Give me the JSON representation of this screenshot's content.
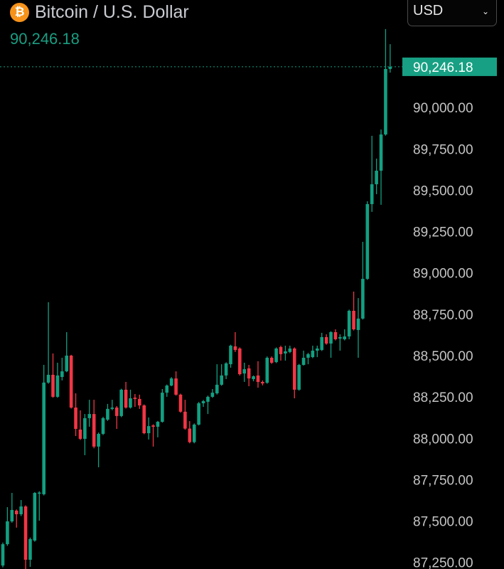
{
  "header": {
    "icon": "bitcoin-icon",
    "icon_glyph": "₿",
    "title": "Bitcoin / U.S. Dollar",
    "price": "90,246.18"
  },
  "currency_select": {
    "value": "USD",
    "icon": "chevron-down-icon"
  },
  "colors": {
    "up": "#12a082",
    "down": "#f23645",
    "last_price_bg": "#17a083",
    "background": "#000000"
  },
  "chart_data": {
    "type": "candlestick",
    "title": "Bitcoin / U.S. Dollar",
    "last_price": 90246.18,
    "last_price_label": "90,246.18",
    "ylim": [
      87210,
      90650
    ],
    "y_ticks": [
      90000,
      89750,
      89500,
      89250,
      89000,
      88750,
      88500,
      88250,
      88000,
      87750,
      87500,
      87250
    ],
    "y_tick_labels": [
      "90,000.00",
      "89,750.00",
      "89,500.00",
      "89,250.00",
      "89,000.00",
      "88,750.00",
      "88,500.00",
      "88,250.00",
      "88,000.00",
      "87,750.00",
      "87,500.00",
      "87,250.00"
    ],
    "grid": false,
    "candles": [
      [
        87231,
        87370,
        87220,
        87360
      ],
      [
        87360,
        87584,
        87350,
        87498
      ],
      [
        87498,
        87670,
        87490,
        87567
      ],
      [
        87563,
        87570,
        87460,
        87541
      ],
      [
        87541,
        87627,
        87530,
        87588
      ],
      [
        87588,
        87595,
        87210,
        87266
      ],
      [
        87266,
        87400,
        87223,
        87391
      ],
      [
        87382,
        87675,
        87375,
        87670
      ],
      [
        87670,
        87680,
        87502,
        87672
      ],
      [
        87662,
        88444,
        87655,
        88337
      ],
      [
        88337,
        88823,
        88330,
        88384
      ],
      [
        88384,
        88513,
        88245,
        88251
      ],
      [
        88251,
        88457,
        88245,
        88380
      ],
      [
        88371,
        88487,
        88350,
        88405
      ],
      [
        88405,
        88642,
        88400,
        88500
      ],
      [
        88500,
        88505,
        88180,
        88186
      ],
      [
        88186,
        88272,
        88014,
        88057
      ],
      [
        88053,
        88169,
        87990,
        87997
      ],
      [
        87997,
        88147,
        87898,
        88122
      ],
      [
        88122,
        88233,
        88070,
        88147
      ],
      [
        88147,
        88233,
        87940,
        87950
      ],
      [
        87950,
        88035,
        87825,
        88027
      ],
      [
        88027,
        88130,
        88020,
        88122
      ],
      [
        88113,
        88208,
        88105,
        88178
      ],
      [
        88178,
        88233,
        88170,
        88186
      ],
      [
        88186,
        88195,
        88057,
        88135
      ],
      [
        88135,
        88300,
        88128,
        88294
      ],
      [
        88294,
        88341,
        88180,
        88186
      ],
      [
        88186,
        88294,
        88180,
        88242
      ],
      [
        88246,
        88268,
        88190,
        88238
      ],
      [
        88238,
        88264,
        88178,
        88199
      ],
      [
        88199,
        88205,
        88025,
        88031
      ],
      [
        88031,
        88126,
        87993,
        88074
      ],
      [
        88078,
        88085,
        87950,
        88070
      ],
      [
        88070,
        88105,
        88006,
        88100
      ],
      [
        88100,
        88298,
        88095,
        88276
      ],
      [
        88276,
        88325,
        88251,
        88319
      ],
      [
        88319,
        88370,
        88315,
        88362
      ],
      [
        88362,
        88405,
        88258,
        88264
      ],
      [
        88264,
        88270,
        88155,
        88161
      ],
      [
        88161,
        88233,
        88052,
        88059
      ],
      [
        88059,
        88104,
        87970,
        87977
      ],
      [
        87977,
        88090,
        87970,
        88083
      ],
      [
        88083,
        88220,
        88078,
        88212
      ],
      [
        88212,
        88232,
        88190,
        88225
      ],
      [
        88221,
        88258,
        88147,
        88251
      ],
      [
        88251,
        88298,
        88245,
        88276
      ],
      [
        88272,
        88448,
        88265,
        88324
      ],
      [
        88324,
        88448,
        88318,
        88380
      ],
      [
        88380,
        88460,
        88358,
        88453
      ],
      [
        88448,
        88566,
        88427,
        88560
      ],
      [
        88556,
        88642,
        88522,
        88534
      ],
      [
        88543,
        88550,
        88380,
        88388
      ],
      [
        88392,
        88457,
        88341,
        88418
      ],
      [
        88423,
        88444,
        88315,
        88362
      ],
      [
        88358,
        88380,
        88345,
        88375
      ],
      [
        88380,
        88466,
        88306,
        88341
      ],
      [
        88341,
        88350,
        88320,
        88332
      ],
      [
        88336,
        88495,
        88330,
        88487
      ],
      [
        88487,
        88495,
        88450,
        88457
      ],
      [
        88461,
        88550,
        88455,
        88543
      ],
      [
        88552,
        88560,
        88470,
        88509
      ],
      [
        88513,
        88560,
        88470,
        88526
      ],
      [
        88522,
        88560,
        88515,
        88543
      ],
      [
        88543,
        88550,
        88242,
        88294
      ],
      [
        88294,
        88450,
        88288,
        88444
      ],
      [
        88444,
        88530,
        88440,
        88487
      ],
      [
        88487,
        88517,
        88448,
        88509
      ],
      [
        88491,
        88560,
        88485,
        88530
      ],
      [
        88530,
        88560,
        88491,
        88543
      ],
      [
        88534,
        88638,
        88528,
        88612
      ],
      [
        88612,
        88629,
        88566,
        88573
      ],
      [
        88573,
        88648,
        88487,
        88642
      ],
      [
        88642,
        88659,
        88592,
        88599
      ],
      [
        88603,
        88629,
        88530,
        88612
      ],
      [
        88599,
        88659,
        88592,
        88616
      ],
      [
        88616,
        88778,
        88599,
        88771
      ],
      [
        88771,
        88887,
        88652,
        88659
      ],
      [
        88655,
        88848,
        88487,
        88724
      ],
      [
        88724,
        89188,
        88718,
        88964
      ],
      [
        88964,
        89433,
        88958,
        89416
      ],
      [
        89416,
        89829,
        89369,
        89536
      ],
      [
        89536,
        89691,
        89476,
        89618
      ],
      [
        89618,
        89867,
        89412,
        89837
      ],
      [
        89837,
        90474,
        89830,
        90233
      ],
      [
        90233,
        90383,
        90211,
        90246.18
      ]
    ]
  }
}
